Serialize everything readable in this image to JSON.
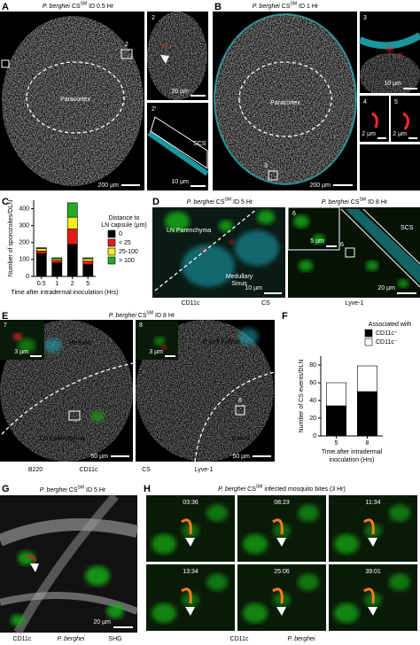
{
  "panels": {
    "a": {
      "label": "A",
      "title": {
        "species": "P. berghei",
        "name": "CS",
        "sup": "SM",
        "rest": "ID 0.5 Hr"
      },
      "region": "Paracortex",
      "box": "2",
      "inset_top": "2",
      "inset_bottom": "2'",
      "scs": "SCS",
      "scale_main": "200 µm",
      "scale_top": "20 µm",
      "scale_bottom": "10 µm"
    },
    "b": {
      "label": "B",
      "title": {
        "species": "P. berghei",
        "name": "CS",
        "sup": "SM",
        "rest": "ID 1 Hr"
      },
      "region": "Paracortex",
      "box": "3",
      "inset_3": "3",
      "inset_4": "4",
      "inset_5": "5",
      "scale_main": "200 µm",
      "scale_3": "10 µm",
      "scale_4": "2 µm",
      "scale_5": "2 µm",
      "legend": [
        {
          "text": "B220",
          "color": "#ffffff"
        },
        {
          "text": "CD169",
          "color": "#2ad4e0"
        },
        {
          "text": "CS",
          "color": "#ff2a2a"
        }
      ]
    },
    "c": {
      "label": "C"
    },
    "d": {
      "label": "D",
      "title_left": {
        "species": "P. berghei",
        "name": "CS",
        "sup": "SM",
        "rest": "ID 5 Hr"
      },
      "title_right": {
        "species": "P. berghei",
        "name": "CS",
        "sup": "SM",
        "rest": "ID 8 Hr"
      },
      "parenchyma": "LN Parenchyma",
      "sinus": [
        "Medullary",
        "Sinus"
      ],
      "scale_left": "10 µm",
      "inset": "6",
      "scale_inset": "5 µm",
      "scs": "SCS",
      "box": "6",
      "scale_right": "20 µm",
      "legend": [
        {
          "text": "CD11c",
          "color": "#19b319"
        },
        {
          "text": "CS",
          "color": "#e01b1b"
        },
        {
          "text": "Lyve-1",
          "color": "#1fb6c8"
        }
      ]
    },
    "e": {
      "label": "E",
      "title": {
        "species": "P. berghei",
        "name": "CS",
        "sup": "SM",
        "rest": "ID 8 Hr"
      },
      "inset_7": "7",
      "scale_7": "3 µm",
      "medulla": "Medulla",
      "parenchyma": "LN Parenchyma",
      "scale_left": "50 µm",
      "inset_8": "8",
      "scale_8": "3 µm",
      "follicle": "B Cell Follicle",
      "box": "8",
      "cortex": "Cortex",
      "scale_right": "50 µm",
      "legend": [
        {
          "text": "B220",
          "color": "#000000"
        },
        {
          "text": "CD11c",
          "color": "#19b319"
        },
        {
          "text": "CS",
          "color": "#e01b1b"
        },
        {
          "text": "Lyve-1",
          "color": "#1fb6c8"
        }
      ]
    },
    "f": {
      "label": "F"
    },
    "g": {
      "label": "G",
      "title": {
        "species": "P. berghei",
        "name": "CS",
        "sup": "SM",
        "rest": "ID 5 Hr"
      },
      "scale": "20 µm",
      "legend": [
        {
          "text": "CD11c",
          "color": "#19b319"
        },
        {
          "text": "P. berghei",
          "color": "#e01b1b",
          "italic": true
        },
        {
          "text": "SHG",
          "color": "#777777"
        }
      ]
    },
    "h": {
      "label": "H",
      "title": {
        "species": "P. berghei",
        "name": "CS",
        "sup": "SM",
        "rest": "infected mosquito bites (3 Hr)"
      },
      "times": [
        "03:36",
        "08:23",
        "11:34",
        "13:34",
        "25:06",
        "39:01"
      ],
      "legend": [
        {
          "text": "CD11c",
          "color": "#19b319"
        },
        {
          "text": "P. berghei",
          "color": "#e01b1b",
          "italic": true
        }
      ]
    }
  },
  "chart_data": [
    {
      "type": "stacked-bar",
      "ylabel": "Number of sporozoites/DLN",
      "xlabel": [
        "Time after intradermal inoculation (Hrs)"
      ],
      "categories": [
        "0.5",
        "1",
        "2",
        "5"
      ],
      "ylim": [
        0,
        450
      ],
      "yticks": [
        0,
        100,
        200,
        300,
        400
      ],
      "legend_title": [
        "Distance to",
        "LN capsule (µm)"
      ],
      "series": [
        {
          "name": "0",
          "color": "#000000",
          "values": [
            135,
            80,
            190,
            70
          ]
        },
        {
          "name": "< 25",
          "color": "#e41a1a",
          "values": [
            15,
            15,
            90,
            20
          ]
        },
        {
          "name": "25-100",
          "color": "#f2ee1d",
          "values": [
            15,
            10,
            70,
            15
          ]
        },
        {
          "name": "> 100",
          "color": "#27a927",
          "values": [
            5,
            5,
            85,
            5
          ]
        }
      ]
    },
    {
      "type": "stacked-bar",
      "ylabel": "Number of CS events/DLN",
      "xlabel": [
        "Time after intradermal",
        "inoculation (Hrs)"
      ],
      "categories": [
        "5",
        "8"
      ],
      "ylim": [
        0,
        90
      ],
      "yticks": [
        0,
        20,
        40,
        60,
        80
      ],
      "legend_title": [
        "Associated with"
      ],
      "series": [
        {
          "name": "CD11c⁺",
          "color": "#000000",
          "values": [
            34,
            50
          ]
        },
        {
          "name": "CD11c⁻",
          "color": "#ffffff",
          "values": [
            26,
            29
          ]
        }
      ]
    }
  ]
}
